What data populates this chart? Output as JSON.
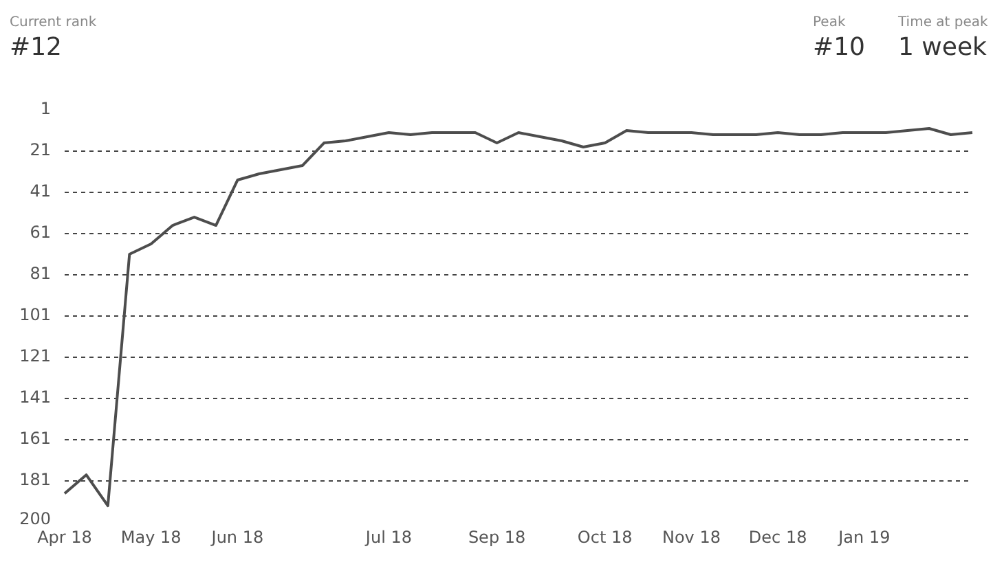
{
  "chart_data": {
    "type": "line",
    "annotations": [
      "Current rank",
      "#12",
      "Peak",
      "#10",
      "Time at peak",
      "1 week"
    ],
    "categories": [
      "Apr 18",
      null,
      null,
      null,
      "May 18",
      null,
      null,
      null,
      "Jun 18",
      null,
      null,
      null,
      null,
      null,
      null,
      "Jul 18",
      null,
      null,
      null,
      null,
      "Sep 18",
      null,
      null,
      null,
      null,
      "Oct 18",
      null,
      null,
      null,
      "Nov 18",
      null,
      null,
      null,
      "Dec 18",
      null,
      null,
      null,
      "Jan 19",
      null,
      null,
      null,
      null,
      null
    ],
    "values": [
      187,
      178,
      193,
      71,
      66,
      57,
      53,
      57,
      35,
      32,
      30,
      28,
      17,
      16,
      14,
      12,
      13,
      12,
      12,
      12,
      17,
      12,
      14,
      16,
      19,
      17,
      11,
      12,
      12,
      12,
      13,
      13,
      13,
      12,
      13,
      13,
      12,
      12,
      12,
      11,
      10,
      13,
      12
    ],
    "color": "#4d4d4d",
    "ylim": [
      200,
      1
    ],
    "yticks": [
      1,
      21,
      41,
      61,
      81,
      101,
      121,
      141,
      161,
      181,
      200
    ],
    "grid": "y",
    "legend": false,
    "marker": "none",
    "line_style": "solid"
  }
}
